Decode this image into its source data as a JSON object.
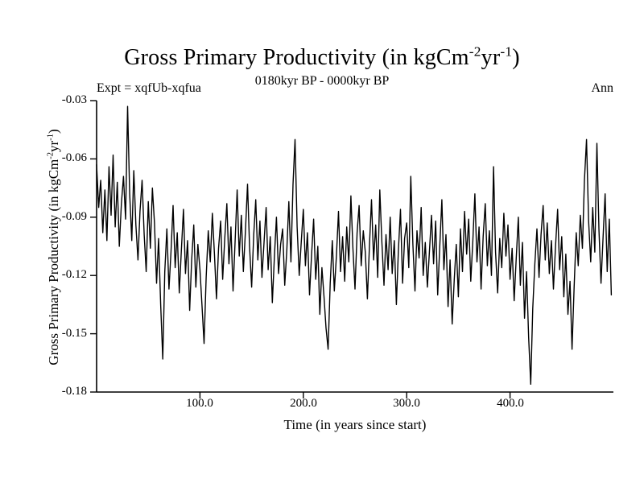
{
  "header": {
    "title_pre": "Gross Primary Productivity (in kgCm",
    "title_sup1": "-2",
    "title_mid": "yr",
    "title_sup2": "-1",
    "title_post": ")",
    "experiment": "Expt = xqfUb-xqfua",
    "subtitle": "0180kyr BP - 0000kyr BP",
    "right_label": "Ann"
  },
  "axes": {
    "x": {
      "label": "Time (in years since start)",
      "ticks": [
        "100.0",
        "200.0",
        "300.0",
        "400.0"
      ]
    },
    "y": {
      "label_pre": "Gross Primary Productivity (in kgCm",
      "label_sup1": "-2",
      "label_mid": "yr",
      "label_sup2": "-1",
      "label_post": ")",
      "ticks": [
        "-0.03",
        "-0.06",
        "-0.09",
        "-0.12",
        "-0.15",
        "-0.18"
      ]
    }
  },
  "chart_data": {
    "type": "line",
    "title": "Gross Primary Productivity (in kgCm-2yr-1)",
    "subtitle": "0180kyr BP - 0000kyr BP",
    "xlabel": "Time (in years since start)",
    "ylabel": "Gross Primary Productivity (in kgCm-2yr-1)",
    "legend": "none",
    "grid": false,
    "line_color": "#000000",
    "xlim": [
      0,
      500
    ],
    "ylim": [
      -0.18,
      -0.03
    ],
    "x_start": 0,
    "x_step": 2,
    "values": [
      -0.063,
      -0.085,
      -0.071,
      -0.098,
      -0.076,
      -0.102,
      -0.064,
      -0.089,
      -0.058,
      -0.095,
      -0.072,
      -0.105,
      -0.083,
      -0.069,
      -0.091,
      -0.033,
      -0.078,
      -0.102,
      -0.066,
      -0.094,
      -0.112,
      -0.087,
      -0.071,
      -0.099,
      -0.118,
      -0.082,
      -0.106,
      -0.075,
      -0.093,
      -0.124,
      -0.101,
      -0.135,
      -0.163,
      -0.118,
      -0.096,
      -0.127,
      -0.108,
      -0.084,
      -0.116,
      -0.098,
      -0.129,
      -0.107,
      -0.086,
      -0.119,
      -0.102,
      -0.138,
      -0.112,
      -0.094,
      -0.126,
      -0.104,
      -0.117,
      -0.136,
      -0.155,
      -0.121,
      -0.097,
      -0.113,
      -0.088,
      -0.109,
      -0.132,
      -0.106,
      -0.092,
      -0.122,
      -0.101,
      -0.083,
      -0.114,
      -0.095,
      -0.128,
      -0.102,
      -0.076,
      -0.11,
      -0.089,
      -0.118,
      -0.097,
      -0.073,
      -0.105,
      -0.126,
      -0.099,
      -0.081,
      -0.112,
      -0.092,
      -0.121,
      -0.103,
      -0.085,
      -0.117,
      -0.1,
      -0.134,
      -0.111,
      -0.09,
      -0.119,
      -0.104,
      -0.096,
      -0.125,
      -0.107,
      -0.082,
      -0.113,
      -0.073,
      -0.05,
      -0.095,
      -0.12,
      -0.103,
      -0.086,
      -0.115,
      -0.098,
      -0.13,
      -0.109,
      -0.091,
      -0.122,
      -0.105,
      -0.14,
      -0.116,
      -0.131,
      -0.147,
      -0.158,
      -0.124,
      -0.102,
      -0.128,
      -0.11,
      -0.087,
      -0.118,
      -0.1,
      -0.123,
      -0.095,
      -0.113,
      -0.079,
      -0.106,
      -0.127,
      -0.098,
      -0.084,
      -0.115,
      -0.097,
      -0.108,
      -0.132,
      -0.104,
      -0.081,
      -0.112,
      -0.094,
      -0.121,
      -0.076,
      -0.103,
      -0.125,
      -0.099,
      -0.117,
      -0.09,
      -0.119,
      -0.102,
      -0.135,
      -0.107,
      -0.086,
      -0.124,
      -0.101,
      -0.093,
      -0.116,
      -0.069,
      -0.104,
      -0.128,
      -0.097,
      -0.111,
      -0.085,
      -0.12,
      -0.103,
      -0.126,
      -0.108,
      -0.089,
      -0.114,
      -0.092,
      -0.13,
      -0.105,
      -0.081,
      -0.117,
      -0.099,
      -0.136,
      -0.112,
      -0.145,
      -0.122,
      -0.104,
      -0.131,
      -0.096,
      -0.118,
      -0.087,
      -0.109,
      -0.091,
      -0.123,
      -0.102,
      -0.078,
      -0.113,
      -0.095,
      -0.127,
      -0.1,
      -0.083,
      -0.115,
      -0.097,
      -0.12,
      -0.064,
      -0.108,
      -0.129,
      -0.101,
      -0.116,
      -0.088,
      -0.11,
      -0.094,
      -0.122,
      -0.106,
      -0.133,
      -0.111,
      -0.09,
      -0.125,
      -0.103,
      -0.142,
      -0.118,
      -0.152,
      -0.176,
      -0.137,
      -0.114,
      -0.096,
      -0.121,
      -0.099,
      -0.084,
      -0.112,
      -0.093,
      -0.119,
      -0.102,
      -0.127,
      -0.105,
      -0.086,
      -0.117,
      -0.1,
      -0.131,
      -0.109,
      -0.14,
      -0.123,
      -0.158,
      -0.126,
      -0.098,
      -0.115,
      -0.089,
      -0.106,
      -0.071,
      -0.05,
      -0.092,
      -0.113,
      -0.085,
      -0.108,
      -0.052,
      -0.096,
      -0.124,
      -0.1,
      -0.078,
      -0.118,
      -0.091,
      -0.13
    ]
  }
}
